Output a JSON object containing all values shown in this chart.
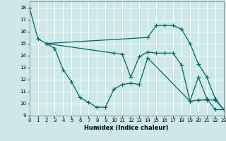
{
  "xlabel": "Humidex (Indice chaleur)",
  "bg_color": "#cce8e8",
  "grid_color": "#ffffff",
  "line_color": "#006666",
  "xlim": [
    0,
    23
  ],
  "ylim": [
    9,
    18.5
  ],
  "xticks": [
    0,
    1,
    2,
    3,
    4,
    5,
    6,
    7,
    8,
    9,
    10,
    11,
    12,
    13,
    14,
    15,
    16,
    17,
    18,
    19,
    20,
    21,
    22,
    23
  ],
  "yticks": [
    9,
    10,
    11,
    12,
    13,
    14,
    15,
    16,
    17,
    18
  ],
  "line1_x": [
    0,
    1,
    2
  ],
  "line1_y": [
    18,
    15.4,
    15.0
  ],
  "line2_x": [
    2,
    3,
    4,
    5,
    6,
    7,
    8,
    9,
    10,
    11,
    12,
    13,
    14,
    19,
    20,
    21,
    22,
    23
  ],
  "line2_y": [
    15.0,
    14.6,
    12.8,
    11.8,
    10.5,
    10.1,
    9.7,
    9.7,
    11.2,
    11.6,
    11.7,
    11.6,
    13.8,
    10.2,
    12.2,
    10.4,
    9.5,
    9.5
  ],
  "line3_x": [
    2,
    14,
    15,
    16,
    17,
    18,
    19,
    20,
    21,
    22,
    23
  ],
  "line3_y": [
    15.0,
    15.5,
    16.5,
    16.5,
    16.5,
    16.2,
    15.0,
    13.3,
    12.2,
    10.4,
    9.5
  ],
  "line4_x": [
    2,
    10,
    11,
    12,
    13,
    14,
    15,
    16,
    17,
    18,
    19,
    20,
    21,
    22,
    23
  ],
  "line4_y": [
    15.0,
    14.2,
    14.1,
    12.2,
    13.9,
    14.3,
    14.2,
    14.2,
    14.2,
    13.2,
    10.2,
    10.3,
    10.3,
    10.3,
    9.5
  ]
}
